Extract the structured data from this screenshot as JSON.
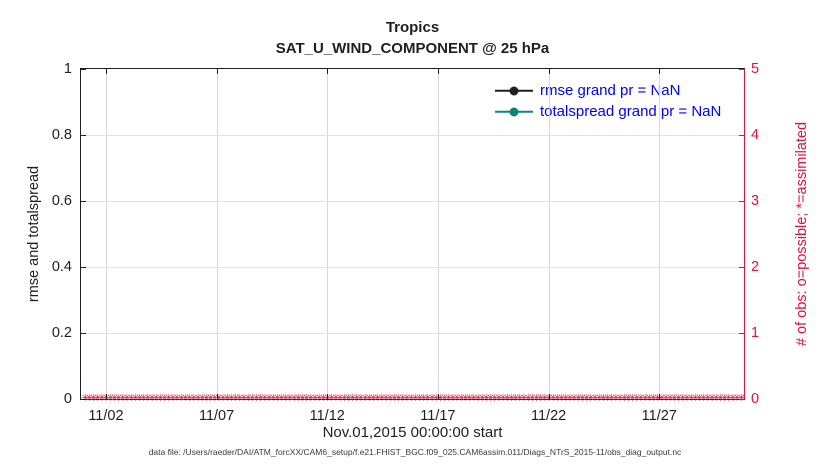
{
  "title": {
    "line1": "Tropics",
    "line2": "SAT_U_WIND_COMPONENT @ 25 hPa"
  },
  "left_axis": {
    "label": "rmse and totalspread",
    "ticks": [
      "0",
      "0.2",
      "0.4",
      "0.6",
      "0.8",
      "1"
    ]
  },
  "right_axis": {
    "label": "# of obs: o=possible; *=assimilated",
    "ticks": [
      "0",
      "1",
      "2",
      "3",
      "4",
      "5"
    ]
  },
  "x_axis": {
    "ticks": [
      "11/02",
      "11/07",
      "11/12",
      "11/17",
      "11/22",
      "11/27"
    ],
    "label": "Nov.01,2015 00:00:00 start"
  },
  "legend": {
    "items": [
      {
        "label": "rmse grand pr = NaN",
        "color": "#1f1f1f"
      },
      {
        "label": "totalspread grand pr = NaN",
        "color": "#0e837b"
      }
    ],
    "text_color": "#0000ff"
  },
  "footer": "data file: /Users/raeder/DAI/ATM_forcXX/CAM6_setup/f.e21.FHIST_BGC.f09_025.CAM6assim.011/Diags_NTrS_2015-11/obs_diag_output.nc",
  "colors": {
    "ink": "#1f1f1f",
    "crimson": "#dc143c",
    "grid_x": "#d8d8d8",
    "grid_y": "#f5d9e2"
  },
  "obs_marker_glyph": "✳",
  "chart_data": {
    "type": "line",
    "title": "Tropics",
    "subtitle": "SAT_U_WIND_COMPONENT @ 25 hPa",
    "xlabel": "Nov.01,2015 00:00:00 start",
    "ylabel_left": "rmse and totalspread",
    "ylabel_right": "# of obs: o=possible; *=assimilated",
    "ylim_left": [
      0,
      1
    ],
    "ylim_right": [
      0,
      5
    ],
    "x_tick_labels": [
      "11/02",
      "11/07",
      "11/12",
      "11/17",
      "11/22",
      "11/27"
    ],
    "x_range_days": [
      "2015-11-01",
      "2015-12-01"
    ],
    "grid": true,
    "legend_position": "upper right, no box",
    "series": [
      {
        "name": "rmse grand pr = NaN",
        "axis": "left",
        "color": "#1f1f1f",
        "marker": "filled-circle",
        "values": "all NaN — no curve drawn"
      },
      {
        "name": "totalspread grand pr = NaN",
        "axis": "left",
        "color": "#0e837b",
        "marker": "filled-circle",
        "values": "all NaN — no curve drawn"
      },
      {
        "name": "# of obs possible (o)",
        "axis": "right",
        "color": "#dc143c",
        "marker": "o",
        "constant_value": 0
      },
      {
        "name": "# of obs assimilated (*)",
        "axis": "right",
        "color": "#dc143c",
        "marker": "*",
        "constant_value": 0
      }
    ]
  }
}
